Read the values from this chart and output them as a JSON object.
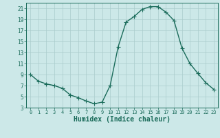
{
  "x": [
    0,
    1,
    2,
    3,
    4,
    5,
    6,
    7,
    8,
    9,
    10,
    11,
    12,
    13,
    14,
    15,
    16,
    17,
    18,
    19,
    20,
    21,
    22,
    23
  ],
  "y": [
    9,
    7.8,
    7.3,
    7.0,
    6.5,
    5.3,
    4.8,
    4.2,
    3.7,
    4.0,
    7.0,
    14.0,
    18.5,
    19.5,
    20.8,
    21.3,
    21.3,
    20.3,
    18.8,
    13.8,
    11.0,
    9.2,
    7.5,
    6.3
  ],
  "line_color": "#1a6b5a",
  "marker": "+",
  "marker_size": 4,
  "line_width": 1.0,
  "xlabel": "Humidex (Indice chaleur)",
  "xlabel_fontsize": 7,
  "bg_color": "#cce8e8",
  "grid_color": "#aacccc",
  "tick_color": "#1a6b5a",
  "xlim": [
    -0.5,
    23.5
  ],
  "ylim": [
    3,
    22
  ],
  "yticks": [
    3,
    5,
    7,
    9,
    11,
    13,
    15,
    17,
    19,
    21
  ],
  "xticks": [
    0,
    1,
    2,
    3,
    4,
    5,
    6,
    7,
    8,
    9,
    10,
    11,
    12,
    13,
    14,
    15,
    16,
    17,
    18,
    19,
    20,
    21,
    22,
    23
  ]
}
